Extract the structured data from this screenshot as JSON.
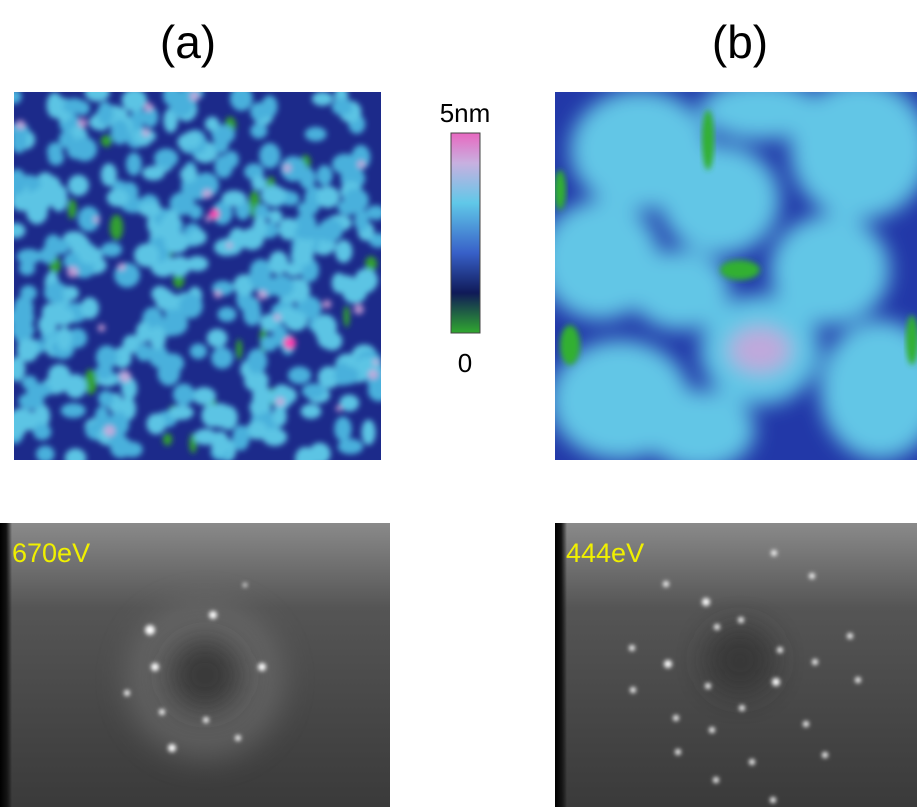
{
  "panels": [
    {
      "label": "(a)",
      "leed_energy": "670eV"
    },
    {
      "label": "(b)",
      "leed_energy": "444eV"
    }
  ],
  "colorbar": {
    "top_label": "5nm",
    "bottom_label": "0"
  }
}
